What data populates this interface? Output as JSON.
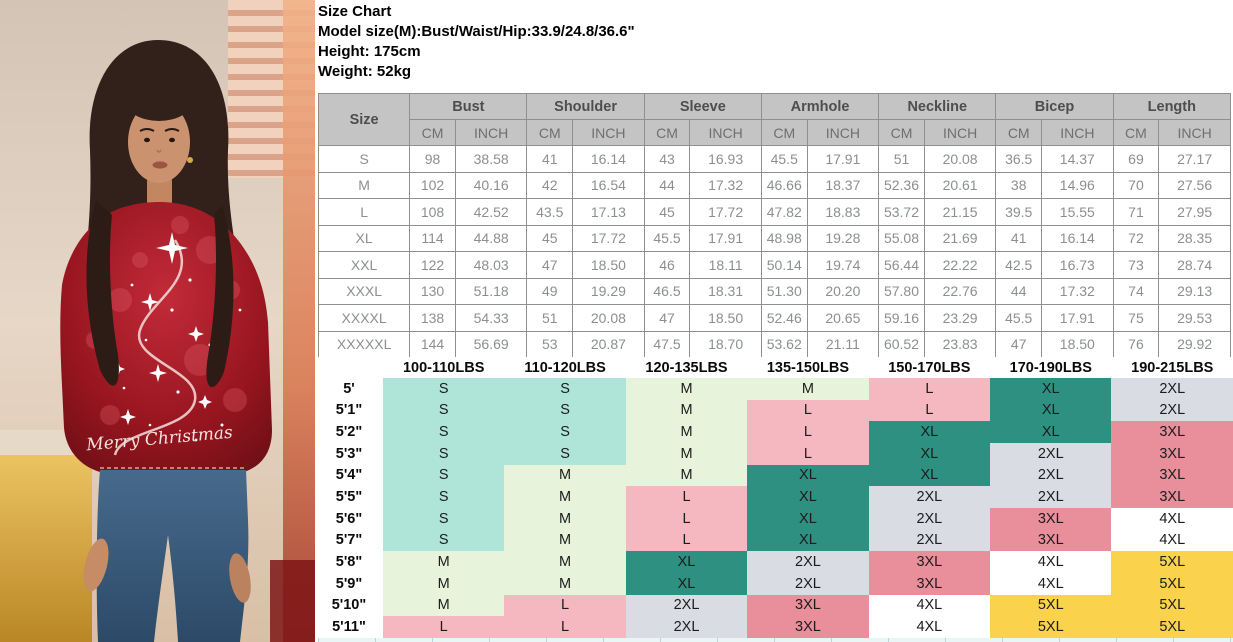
{
  "header": {
    "title": "Size Chart",
    "model_size": "Model size(M):Bust/Waist/Hip:33.9/24.8/36.6\"",
    "height": "Height: 175cm",
    "weight": "Weight: 52kg"
  },
  "photo": {
    "shirt_text": "Merry Christmas"
  },
  "measurement_table": {
    "size_header": "Size",
    "unit_headers": [
      "CM",
      "INCH"
    ],
    "groups": [
      "Bust",
      "Shoulder",
      "Sleeve",
      "Armhole",
      "Neckline",
      "Bicep",
      "Length"
    ],
    "rows": [
      {
        "size": "S",
        "values": [
          "98",
          "38.58",
          "41",
          "16.14",
          "43",
          "16.93",
          "45.5",
          "17.91",
          "51",
          "20.08",
          "36.5",
          "14.37",
          "69",
          "27.17"
        ]
      },
      {
        "size": "M",
        "values": [
          "102",
          "40.16",
          "42",
          "16.54",
          "44",
          "17.32",
          "46.66",
          "18.37",
          "52.36",
          "20.61",
          "38",
          "14.96",
          "70",
          "27.56"
        ]
      },
      {
        "size": "L",
        "values": [
          "108",
          "42.52",
          "43.5",
          "17.13",
          "45",
          "17.72",
          "47.82",
          "18.83",
          "53.72",
          "21.15",
          "39.5",
          "15.55",
          "71",
          "27.95"
        ]
      },
      {
        "size": "XL",
        "values": [
          "114",
          "44.88",
          "45",
          "17.72",
          "45.5",
          "17.91",
          "48.98",
          "19.28",
          "55.08",
          "21.69",
          "41",
          "16.14",
          "72",
          "28.35"
        ]
      },
      {
        "size": "XXL",
        "values": [
          "122",
          "48.03",
          "47",
          "18.50",
          "46",
          "18.11",
          "50.14",
          "19.74",
          "56.44",
          "22.22",
          "42.5",
          "16.73",
          "73",
          "28.74"
        ]
      },
      {
        "size": "XXXL",
        "values": [
          "130",
          "51.18",
          "49",
          "19.29",
          "46.5",
          "18.31",
          "51.30",
          "20.20",
          "57.80",
          "22.76",
          "44",
          "17.32",
          "74",
          "29.13"
        ]
      },
      {
        "size": "XXXXL",
        "values": [
          "138",
          "54.33",
          "51",
          "20.08",
          "47",
          "18.50",
          "52.46",
          "20.65",
          "59.16",
          "23.29",
          "45.5",
          "17.91",
          "75",
          "29.53"
        ]
      },
      {
        "size": "XXXXXL",
        "values": [
          "144",
          "56.69",
          "53",
          "20.87",
          "47.5",
          "18.70",
          "53.62",
          "21.11",
          "60.52",
          "23.83",
          "47",
          "18.50",
          "76",
          "29.92"
        ]
      }
    ]
  },
  "fit_table": {
    "weight_headers": [
      "100-110LBS",
      "110-120LBS",
      "120-135LBS",
      "135-150LBS",
      "150-170LBS",
      "170-190LBS",
      "190-215LBS"
    ],
    "size_colors": {
      "S": "#aee5d8",
      "M": "#e7f3da",
      "L": "#f5b7c0",
      "XL": "#2e9080",
      "2XL": "#d9dde3",
      "3XL": "#e98e9b",
      "4XL": "#ffffff",
      "5XL": "#fbd24b"
    },
    "rows": [
      {
        "height": "5'",
        "sizes": [
          "S",
          "S",
          "M",
          "M",
          "L",
          "XL",
          "2XL"
        ]
      },
      {
        "height": "5'1\"",
        "sizes": [
          "S",
          "S",
          "M",
          "L",
          "L",
          "XL",
          "2XL"
        ]
      },
      {
        "height": "5'2\"",
        "sizes": [
          "S",
          "S",
          "M",
          "L",
          "XL",
          "XL",
          "3XL"
        ]
      },
      {
        "height": "5'3\"",
        "sizes": [
          "S",
          "S",
          "M",
          "L",
          "XL",
          "2XL",
          "3XL"
        ]
      },
      {
        "height": "5'4\"",
        "sizes": [
          "S",
          "M",
          "M",
          "XL",
          "XL",
          "2XL",
          "3XL"
        ]
      },
      {
        "height": "5'5\"",
        "sizes": [
          "S",
          "M",
          "L",
          "XL",
          "2XL",
          "2XL",
          "3XL"
        ]
      },
      {
        "height": "5'6\"",
        "sizes": [
          "S",
          "M",
          "L",
          "XL",
          "2XL",
          "3XL",
          "4XL"
        ]
      },
      {
        "height": "5'7\"",
        "sizes": [
          "S",
          "M",
          "L",
          "XL",
          "2XL",
          "3XL",
          "4XL"
        ]
      },
      {
        "height": "5'8\"",
        "sizes": [
          "M",
          "M",
          "XL",
          "2XL",
          "3XL",
          "4XL",
          "5XL"
        ]
      },
      {
        "height": "5'9\"",
        "sizes": [
          "M",
          "M",
          "XL",
          "2XL",
          "3XL",
          "4XL",
          "5XL"
        ]
      },
      {
        "height": "5'10\"",
        "sizes": [
          "M",
          "L",
          "2XL",
          "3XL",
          "4XL",
          "5XL",
          "5XL"
        ]
      },
      {
        "height": "5'11\"",
        "sizes": [
          "L",
          "L",
          "2XL",
          "3XL",
          "4XL",
          "5XL",
          "5XL"
        ]
      }
    ]
  }
}
